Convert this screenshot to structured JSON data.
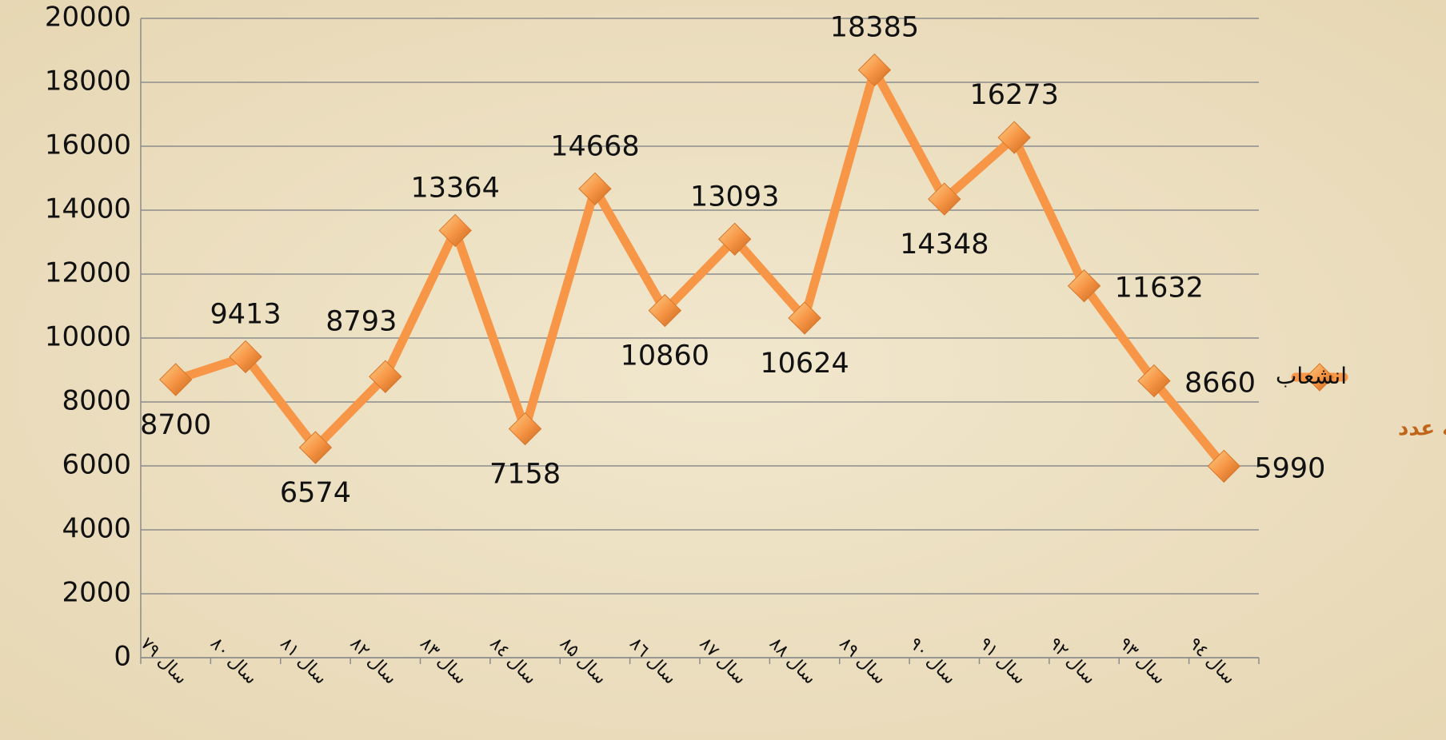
{
  "chart_data": {
    "type": "line",
    "categories": [
      "سال ۷۹",
      "سال ۸۰",
      "سال ۸۱",
      "سال ۸۲",
      "سال ۸۳",
      "سال ٨٤",
      "سال ۸۵",
      "سال ٨٦",
      "سال ۸۷",
      "سال ۸۸",
      "سال ۸۹",
      "سال ۹۰",
      "سال ۹۱",
      "سال ۹۲",
      "سال ۹۳",
      "سال ٩٤"
    ],
    "series": [
      {
        "name": "انشعاب",
        "color": "#f79646",
        "values": [
          8700,
          9413,
          6574,
          8793,
          13364,
          7158,
          14668,
          10860,
          13093,
          10624,
          18385,
          14348,
          16273,
          11632,
          8660,
          5990
        ]
      }
    ],
    "annotation": "به عدد",
    "ylim": [
      0,
      20000
    ],
    "yticks": [
      0,
      2000,
      4000,
      6000,
      8000,
      10000,
      12000,
      14000,
      16000,
      18000,
      20000
    ],
    "grid": true,
    "legend": "right"
  }
}
